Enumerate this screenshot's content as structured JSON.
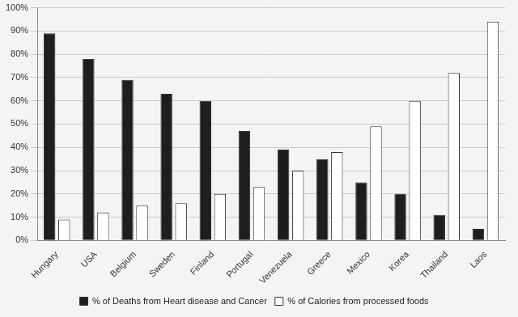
{
  "chart_data": {
    "type": "bar",
    "categories": [
      "Hungary",
      "USA",
      "Belgium",
      "Sweden",
      "Finland",
      "Portugal",
      "Venezuela",
      "Greece",
      "Mexico",
      "Korea",
      "Thailand",
      "Laos"
    ],
    "series": [
      {
        "name": "% of Deaths from Heart disease and Cancer",
        "color": "#1e1e1e",
        "values": [
          89,
          78,
          69,
          63,
          60,
          47,
          39,
          35,
          25,
          20,
          11,
          5
        ]
      },
      {
        "name": "% of Calories from processed foods",
        "color": "#ffffff",
        "values": [
          9,
          12,
          15,
          16,
          20,
          23,
          30,
          38,
          49,
          60,
          72,
          94
        ]
      }
    ],
    "ylim": [
      0,
      100
    ],
    "yticks": [
      {
        "value": 0,
        "label": "0%"
      },
      {
        "value": 10,
        "label": "10%"
      },
      {
        "value": 20,
        "label": "20%"
      },
      {
        "value": 30,
        "label": "30%"
      },
      {
        "value": 40,
        "label": "40%"
      },
      {
        "value": 50,
        "label": "50%"
      },
      {
        "value": 60,
        "label": "60%"
      },
      {
        "value": 70,
        "label": "70%"
      },
      {
        "value": 80,
        "label": "80%"
      },
      {
        "value": 90,
        "label": "90%"
      },
      {
        "value": 100,
        "label": "100%"
      }
    ],
    "grid": true,
    "legend": "bottom"
  }
}
